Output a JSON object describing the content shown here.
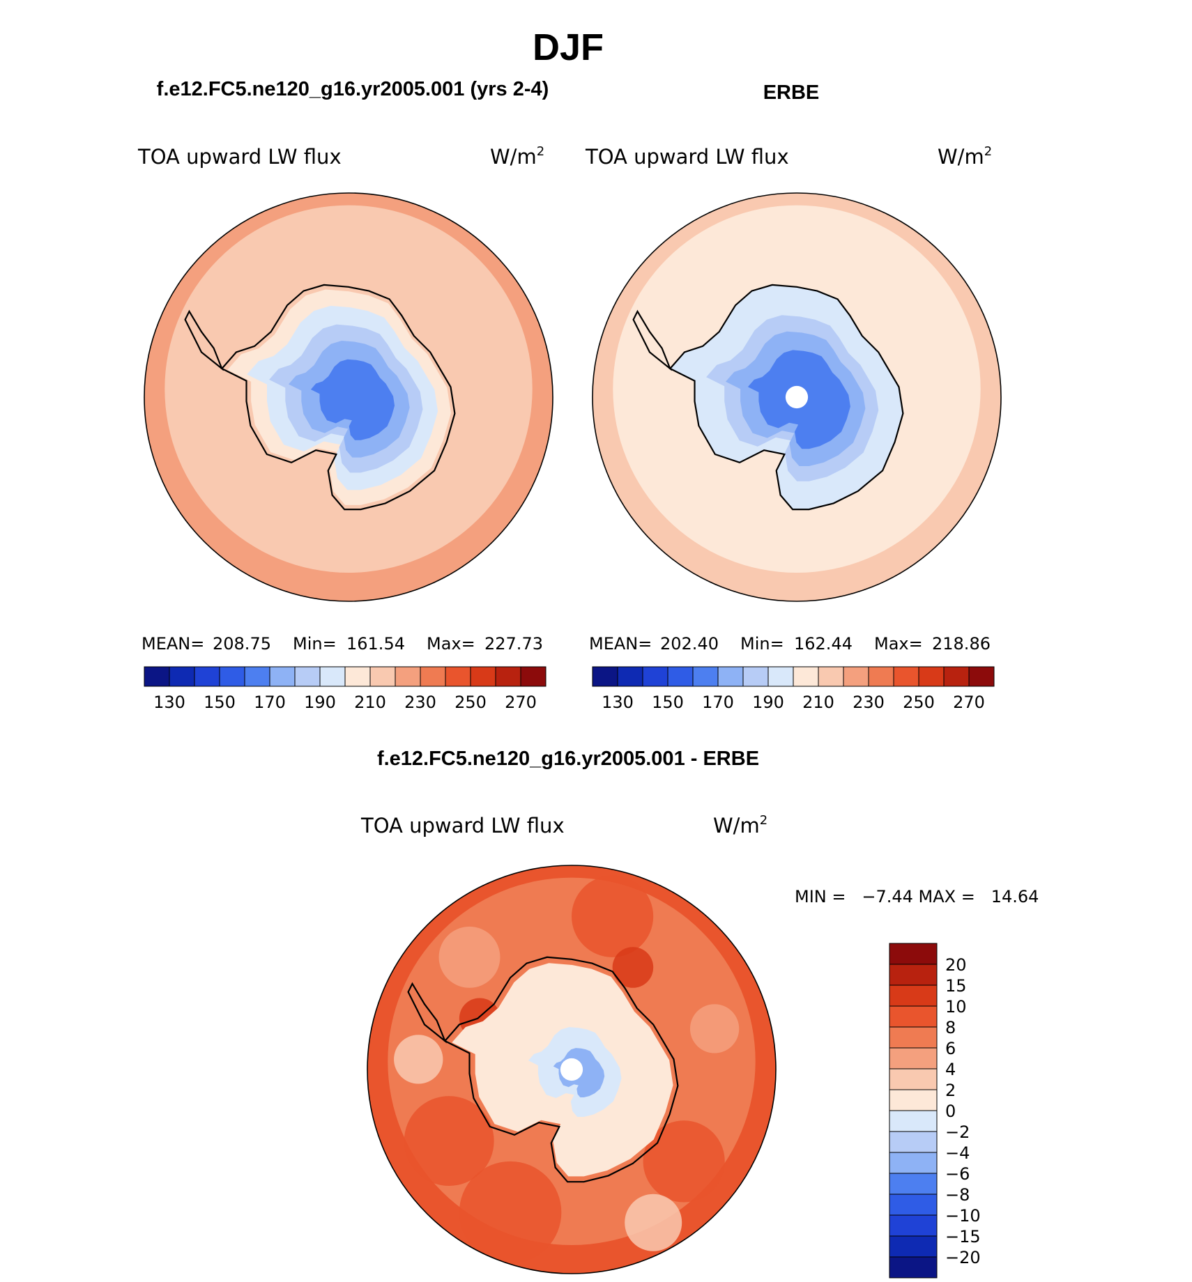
{
  "chart_data": {
    "type": "heatmap",
    "title": "DJF",
    "panels": [
      {
        "id": "model",
        "title": "f.e12.FC5.ne120_g16.yr2005.001 (yrs 2-4)",
        "variable": "TOA upward LW flux",
        "units": "W/m",
        "units_sup": "2",
        "stats": {
          "mean_label": "MEAN=",
          "mean": "208.75",
          "min_label": "Min=",
          "min": "161.54",
          "max_label": "Max=",
          "max": "227.73"
        },
        "colorbar": {
          "tick_labels": [
            "130",
            "150",
            "170",
            "190",
            "210",
            "230",
            "250",
            "270"
          ],
          "colors": [
            "#0b1585",
            "#0e2ab3",
            "#1f42d6",
            "#2f5ce6",
            "#4d7ff0",
            "#8eb2f5",
            "#b7ccf6",
            "#d9e8fa",
            "#fde8d8",
            "#f9c9b0",
            "#f4a07e",
            "#ef7b52",
            "#e9552d",
            "#d83a18",
            "#b8220f",
            "#8c0b0b"
          ]
        },
        "map": {
          "ocean": "#f9c9b0",
          "outer": "#f4a07e",
          "interior": [
            [
              "#fde8d8",
              0.96
            ],
            [
              "#d9e8fa",
              0.82
            ],
            [
              "#b7ccf6",
              0.66
            ],
            [
              "#8eb2f5",
              0.52
            ],
            [
              "#4d7ff0",
              0.36
            ]
          ],
          "pole_hole": false
        }
      },
      {
        "id": "obs",
        "title": "ERBE",
        "variable": "TOA upward LW flux",
        "units": "W/m",
        "units_sup": "2",
        "stats": {
          "mean_label": "MEAN=",
          "mean": "202.40",
          "min_label": "Min=",
          "min": "162.44",
          "max_label": "Max=",
          "max": "218.86"
        },
        "colorbar": {
          "tick_labels": [
            "130",
            "150",
            "170",
            "190",
            "210",
            "230",
            "250",
            "270"
          ],
          "colors": [
            "#0b1585",
            "#0e2ab3",
            "#1f42d6",
            "#2f5ce6",
            "#4d7ff0",
            "#8eb2f5",
            "#b7ccf6",
            "#d9e8fa",
            "#fde8d8",
            "#f9c9b0",
            "#f4a07e",
            "#ef7b52",
            "#e9552d",
            "#d83a18",
            "#b8220f",
            "#8c0b0b"
          ]
        },
        "map": {
          "ocean": "#fde8d8",
          "outer": "#f9c9b0",
          "interior": [
            [
              "#d9e8fa",
              1.0
            ],
            [
              "#b7ccf6",
              0.74
            ],
            [
              "#8eb2f5",
              0.6
            ],
            [
              "#4d7ff0",
              0.44
            ]
          ],
          "pole_hole": true
        }
      },
      {
        "id": "diff",
        "title": "f.e12.FC5.ne120_g16.yr2005.001 - ERBE",
        "variable": "TOA upward LW flux",
        "units": "W/m",
        "units_sup": "2",
        "minmax_text": "MIN =   −7.44 MAX =   14.64",
        "colorbar": {
          "tick_labels": [
            "20",
            "15",
            "10",
            "8",
            "6",
            "4",
            "2",
            "0",
            "−2",
            "−4",
            "−6",
            "−8",
            "−10",
            "−15",
            "−20"
          ],
          "colors": [
            "#8c0b0b",
            "#b8220f",
            "#d83a18",
            "#e9552d",
            "#ef7b52",
            "#f4a07e",
            "#f9c9b0",
            "#fde8d8",
            "#d9e8fa",
            "#b7ccf6",
            "#8eb2f5",
            "#4d7ff0",
            "#2f5ce6",
            "#1f42d6",
            "#0e2ab3",
            "#0b1585"
          ]
        },
        "map": {
          "ocean": "#ef7b52",
          "outer": "#e9552d",
          "interior": [
            [
              "#fde8d8",
              0.95
            ],
            [
              "#d9e8fa",
              0.4
            ],
            [
              "#8eb2f5",
              0.22
            ]
          ],
          "pole_hole": true
        }
      }
    ]
  }
}
